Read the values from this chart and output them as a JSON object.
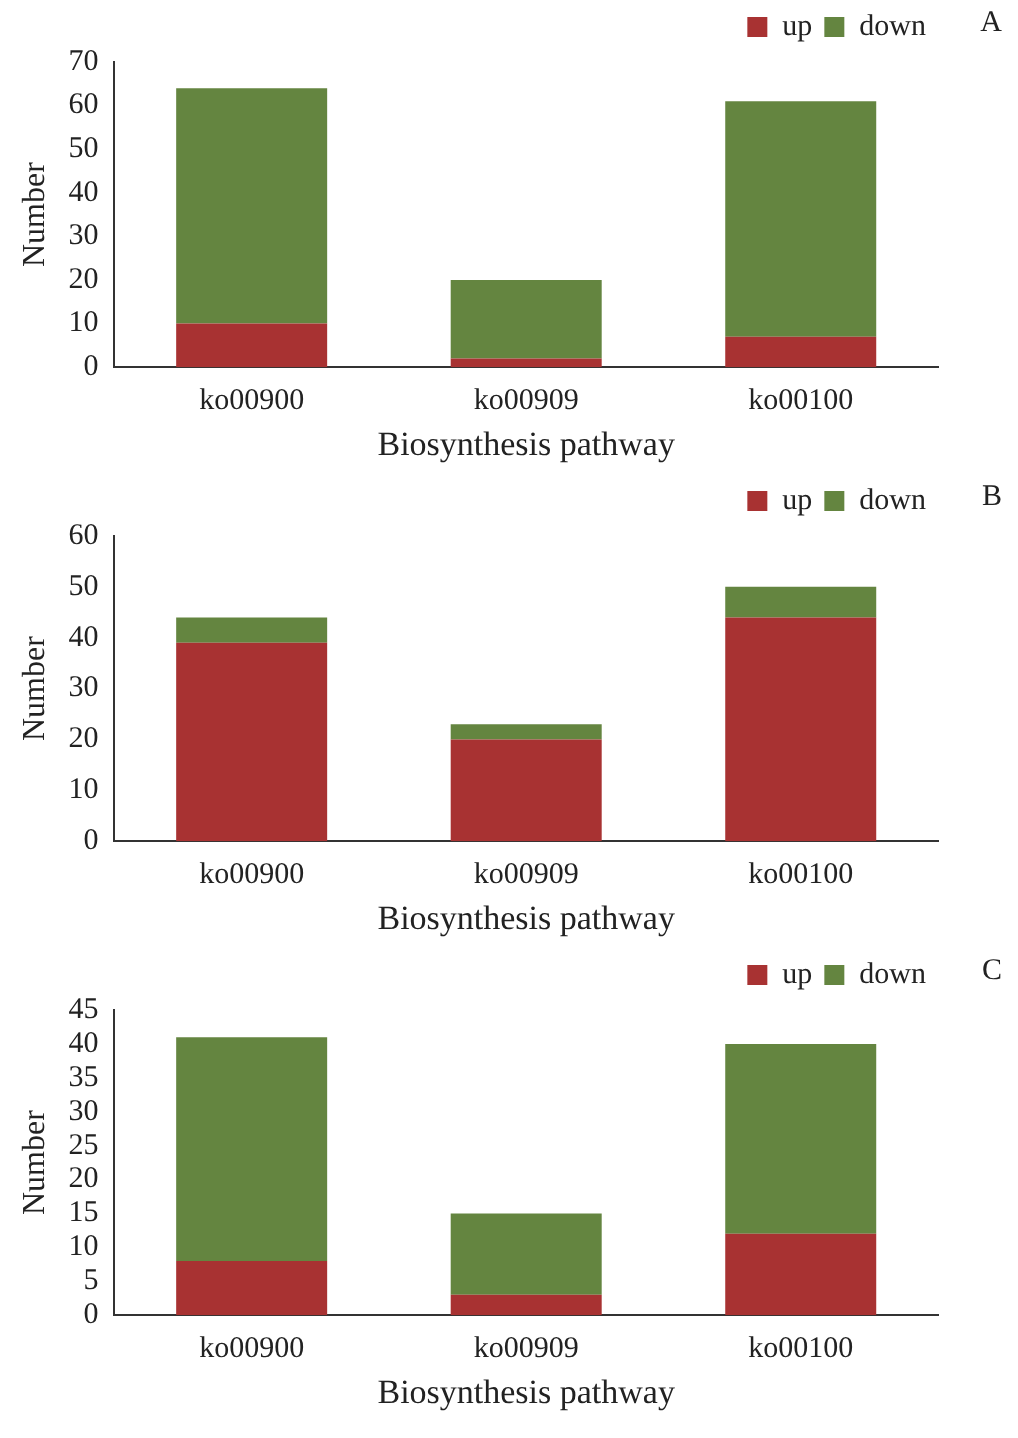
{
  "chart_data": [
    {
      "type": "bar",
      "stacked": true,
      "categories": [
        "ko00900",
        "ko00909",
        "ko00100"
      ],
      "xlabel": "Biosynthesis pathway",
      "ylabel": "Number",
      "ylim": [
        0,
        70
      ],
      "yticks": [
        0,
        10,
        20,
        30,
        40,
        50,
        60,
        70
      ],
      "grid": false,
      "legend": "top right",
      "annotations": [
        "A"
      ],
      "series": [
        {
          "name": "up",
          "color": "#a83232",
          "values": [
            10,
            2,
            7
          ]
        },
        {
          "name": "down",
          "color": "#648540",
          "values": [
            54,
            18,
            54
          ]
        }
      ]
    },
    {
      "type": "bar",
      "stacked": true,
      "categories": [
        "ko00900",
        "ko00909",
        "ko00100"
      ],
      "xlabel": "Biosynthesis pathway",
      "ylabel": "Number",
      "ylim": [
        0,
        60
      ],
      "yticks": [
        0,
        10,
        20,
        30,
        40,
        50,
        60
      ],
      "grid": false,
      "legend": "top right",
      "annotations": [
        "B"
      ],
      "series": [
        {
          "name": "up",
          "color": "#a83232",
          "values": [
            39,
            20,
            44
          ]
        },
        {
          "name": "down",
          "color": "#648540",
          "values": [
            5,
            3,
            6
          ]
        }
      ]
    },
    {
      "type": "bar",
      "stacked": true,
      "categories": [
        "ko00900",
        "ko00909",
        "ko00100"
      ],
      "xlabel": "Biosynthesis pathway",
      "ylabel": "Number",
      "ylim": [
        0,
        45
      ],
      "yticks": [
        0,
        5,
        10,
        15,
        20,
        25,
        30,
        35,
        40,
        45
      ],
      "grid": false,
      "legend": "top right",
      "annotations": [
        "C"
      ],
      "series": [
        {
          "name": "up",
          "color": "#a83232",
          "values": [
            8,
            3,
            12
          ]
        },
        {
          "name": "down",
          "color": "#648540",
          "values": [
            33,
            12,
            28
          ]
        }
      ]
    }
  ]
}
